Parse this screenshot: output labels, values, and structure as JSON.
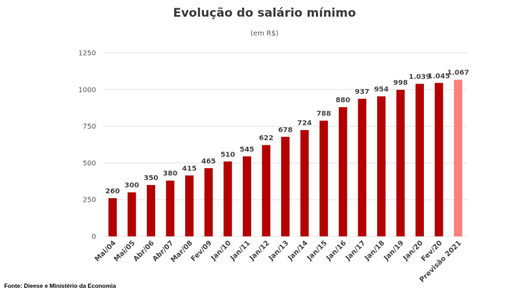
{
  "chart_data": {
    "type": "bar",
    "title": "Evolução do salário mínimo",
    "subtitle": "(em R$)",
    "categories": [
      "Mai/04",
      "Mai/05",
      "Abr/06",
      "Abr/07",
      "Mar/08",
      "Fev/09",
      "Jan/10",
      "Jan/11",
      "Jan/12",
      "Jan/13",
      "Jan/14",
      "Jan/15",
      "Jan/16",
      "Jan/17",
      "Jan/18",
      "Jan/19",
      "Jan/20",
      "Fev/20",
      "Previsão 2021"
    ],
    "values": [
      260,
      300,
      350,
      380,
      415,
      465,
      510,
      545,
      622,
      678,
      724,
      788,
      880,
      937,
      954,
      998,
      1039,
      1045,
      1067
    ],
    "data_labels": [
      "260",
      "300",
      "350",
      "380",
      "415",
      "465",
      "510",
      "545",
      "622",
      "678",
      "724",
      "788",
      "880",
      "937",
      "954",
      "998",
      "1.039",
      "1.045",
      "1.067"
    ],
    "ylim": [
      0,
      1250
    ],
    "yticks": [
      0,
      250,
      500,
      750,
      1000,
      1250
    ],
    "ytick_labels": [
      "0",
      "250",
      "500",
      "750",
      "1000",
      "1250"
    ],
    "grid": true,
    "colors": {
      "bar": "#b30000",
      "highlight": "#ff8080"
    },
    "highlight_index": 18
  },
  "source_note": "Fonte: Dieese e Ministério da Economia"
}
